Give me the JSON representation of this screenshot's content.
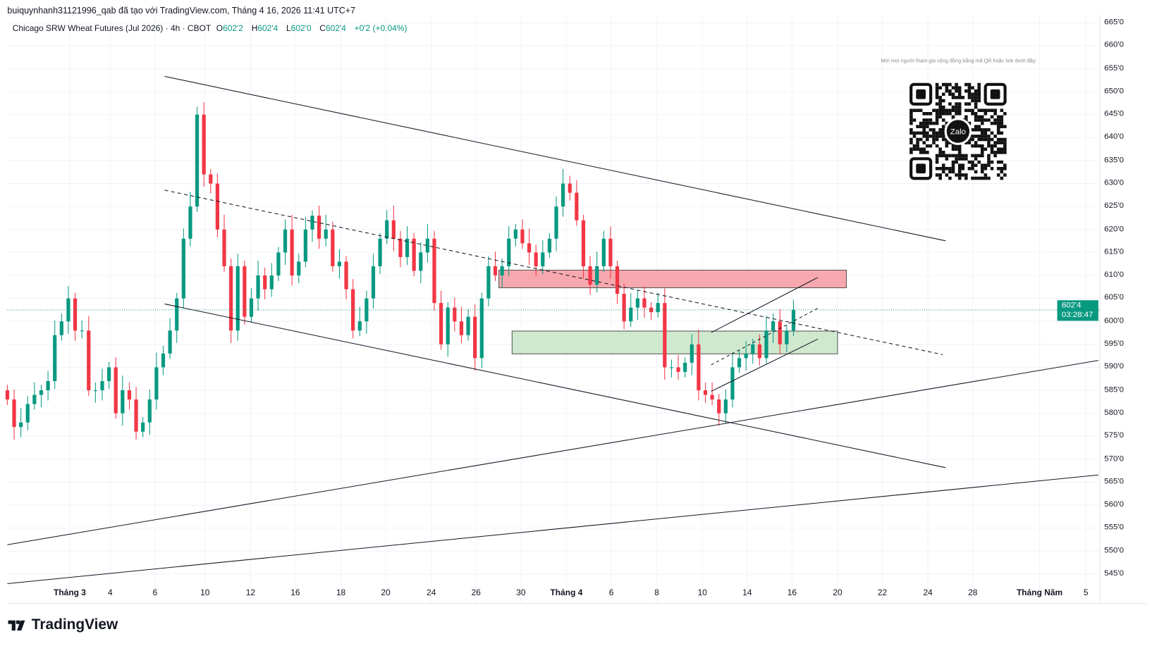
{
  "credit": "buiquynhanh31121996_qab đã tạo với TradingView.com, Tháng 4 16, 2026 11:41 UTC+7",
  "legend": {
    "symbol": "Chicago SRW Wheat Futures (Jul 2026) · 4h · CBOT",
    "o_label": "O",
    "o": "602'2",
    "h_label": "H",
    "h": "602'4",
    "l_label": "L",
    "l": "602'0",
    "c_label": "C",
    "c": "602'4",
    "change": "+0'2 (+0.04%)"
  },
  "price_tag": {
    "price": "602'4",
    "countdown": "03:28:47"
  },
  "qr_note": "Mời mọi người tham gia cộng đồng bằng mã QR hoặc link dưới đây:",
  "qr_center": "Zalo",
  "logo_text": "TradingView",
  "colors": {
    "up": "#089981",
    "down": "#f23645",
    "red_zone": "#f7a8ae",
    "green_zone": "#cfe9cf"
  },
  "chart_data": {
    "type": "candlestick",
    "title": "Chicago SRW Wheat Futures (Jul 2026) · 4h · CBOT",
    "ylim": [
      543,
      667
    ],
    "y_ticks": [
      "665'0",
      "660'0",
      "655'0",
      "650'0",
      "645'0",
      "640'0",
      "635'0",
      "630'0",
      "625'0",
      "620'0",
      "615'0",
      "610'0",
      "605'0",
      "600'0",
      "595'0",
      "590'0",
      "585'0",
      "580'0",
      "575'0",
      "570'0",
      "565'0",
      "560'0",
      "555'0",
      "550'0",
      "545'0"
    ],
    "x_ticks": [
      {
        "label": "Tháng 3",
        "bold": true
      },
      {
        "label": "4"
      },
      {
        "label": "6"
      },
      {
        "label": "10"
      },
      {
        "label": "12"
      },
      {
        "label": "16"
      },
      {
        "label": "18"
      },
      {
        "label": "20"
      },
      {
        "label": "24"
      },
      {
        "label": "26"
      },
      {
        "label": "30"
      },
      {
        "label": "Tháng 4",
        "bold": true
      },
      {
        "label": "6"
      },
      {
        "label": "8"
      },
      {
        "label": "10"
      },
      {
        "label": "14"
      },
      {
        "label": "16"
      },
      {
        "label": "20"
      },
      {
        "label": "22"
      },
      {
        "label": "24"
      },
      {
        "label": "28"
      },
      {
        "label": "Tháng Năm",
        "bold": true
      },
      {
        "label": "5"
      }
    ],
    "first_open": 585,
    "closes": [
      583,
      577,
      578,
      582,
      584,
      585,
      587,
      597,
      600,
      605,
      598,
      598,
      585,
      585,
      587,
      590,
      580,
      585,
      583,
      576,
      578,
      583,
      590,
      593,
      598,
      605,
      618,
      625,
      645,
      632,
      630,
      620,
      612,
      598,
      612,
      601,
      605,
      610,
      607,
      610,
      615,
      620,
      610,
      613,
      620,
      623,
      618,
      620,
      612,
      613,
      607,
      598,
      600,
      605,
      612,
      618,
      622,
      618,
      614,
      618,
      611,
      615,
      618,
      604,
      595,
      603,
      600,
      597,
      601,
      592,
      605,
      612,
      610,
      612,
      618,
      620,
      617,
      615,
      612,
      615,
      618,
      625,
      630,
      628,
      622,
      612,
      608,
      612,
      618,
      612,
      606,
      600,
      603,
      605,
      603,
      602,
      604,
      590,
      590,
      589,
      591,
      595,
      585,
      584,
      583,
      580,
      583,
      590,
      592,
      593,
      595,
      592,
      598,
      600,
      595,
      598,
      602.5
    ],
    "current_price": 602.5
  }
}
